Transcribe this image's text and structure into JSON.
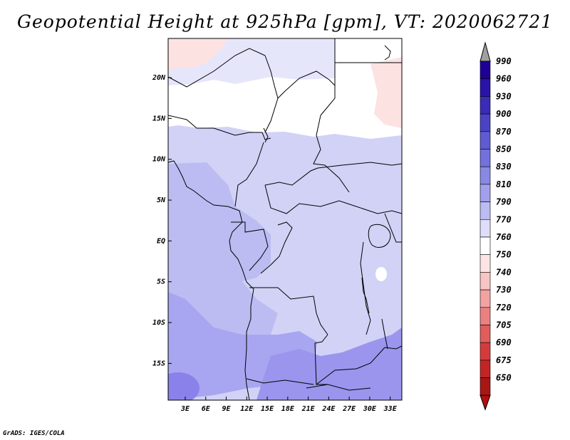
{
  "title": "Geopotential Height at 925hPa [gpm], VT: 2020062721",
  "credit": "GrADS: IGES/COLA",
  "map": {
    "lat_range": [
      -19.5,
      24.8
    ],
    "lon_range": [
      0.5,
      34.7
    ],
    "lat_ticks": [
      "20N",
      "15N",
      "10N",
      "5N",
      "EQ",
      "5S",
      "10S",
      "15S"
    ],
    "lon_ticks": [
      "3E",
      "6E",
      "9E",
      "12E",
      "15E",
      "18E",
      "21E",
      "24E",
      "27E",
      "30E",
      "33E"
    ],
    "region_fills": [
      {
        "name": "north-sahara-760",
        "color": "#ffffff"
      },
      {
        "name": "sahel-770",
        "color": "#e6e6fb"
      },
      {
        "name": "central-790",
        "color": "#d2d2f7"
      },
      {
        "name": "atlantic-810",
        "color": "#bcbcf3"
      },
      {
        "name": "southwest-830",
        "color": "#a8a6f0"
      },
      {
        "name": "south-850",
        "color": "#9b95ee"
      },
      {
        "name": "northwest-750",
        "color": "#fde2e2"
      },
      {
        "name": "northeast-750",
        "color": "#fde2e2"
      }
    ]
  },
  "colorbar": {
    "levels": [
      {
        "label": "990",
        "color": "#1e0096"
      },
      {
        "label": "960",
        "color": "#2a13a8"
      },
      {
        "label": "930",
        "color": "#3a2cb8"
      },
      {
        "label": "900",
        "color": "#4b43c6"
      },
      {
        "label": "870",
        "color": "#5e5bd3"
      },
      {
        "label": "850",
        "color": "#7271dd"
      },
      {
        "label": "830",
        "color": "#8888e5"
      },
      {
        "label": "810",
        "color": "#a0a0ed"
      },
      {
        "label": "790",
        "color": "#bcbcf4"
      },
      {
        "label": "770",
        "color": "#dedefa"
      },
      {
        "label": "760",
        "color": "#ffffff"
      },
      {
        "label": "750",
        "color": "#fde4e4"
      },
      {
        "label": "740",
        "color": "#f9c4c4"
      },
      {
        "label": "730",
        "color": "#f3a2a2"
      },
      {
        "label": "720",
        "color": "#ec8080"
      },
      {
        "label": "705",
        "color": "#e25c5c"
      },
      {
        "label": "690",
        "color": "#d63b3b"
      },
      {
        "label": "675",
        "color": "#c42424"
      },
      {
        "label": "650",
        "color": "#a81616"
      }
    ],
    "top_arrow_color": "#a0a0a0",
    "bottom_arrow_color": "#b01010"
  }
}
